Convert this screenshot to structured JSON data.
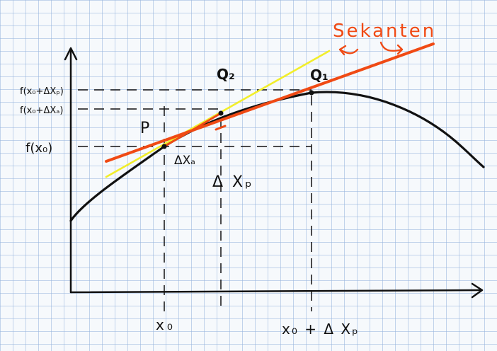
{
  "labels": {
    "sekanten": "Sekanten",
    "point_p": "P",
    "point_q1": "Q₁",
    "point_q2": "Q₂",
    "delta_xq": "ΔXₐ",
    "delta_xp": "Δ Xₚ",
    "x0": "x₀",
    "x0_plus_dxp": "x₀ + Δ Xₚ",
    "f_x0": "f(x₀)",
    "f_x0_dxq": "f(x₀+ΔXₐ)",
    "f_x0_dxp": "f(x₀+ΔXₚ)"
  },
  "colors": {
    "curve": "#111111",
    "secant": "#f04a14",
    "tangent": "#f2ee2a",
    "grid": "#b6cbe6",
    "background": "#f6f9fc"
  }
}
